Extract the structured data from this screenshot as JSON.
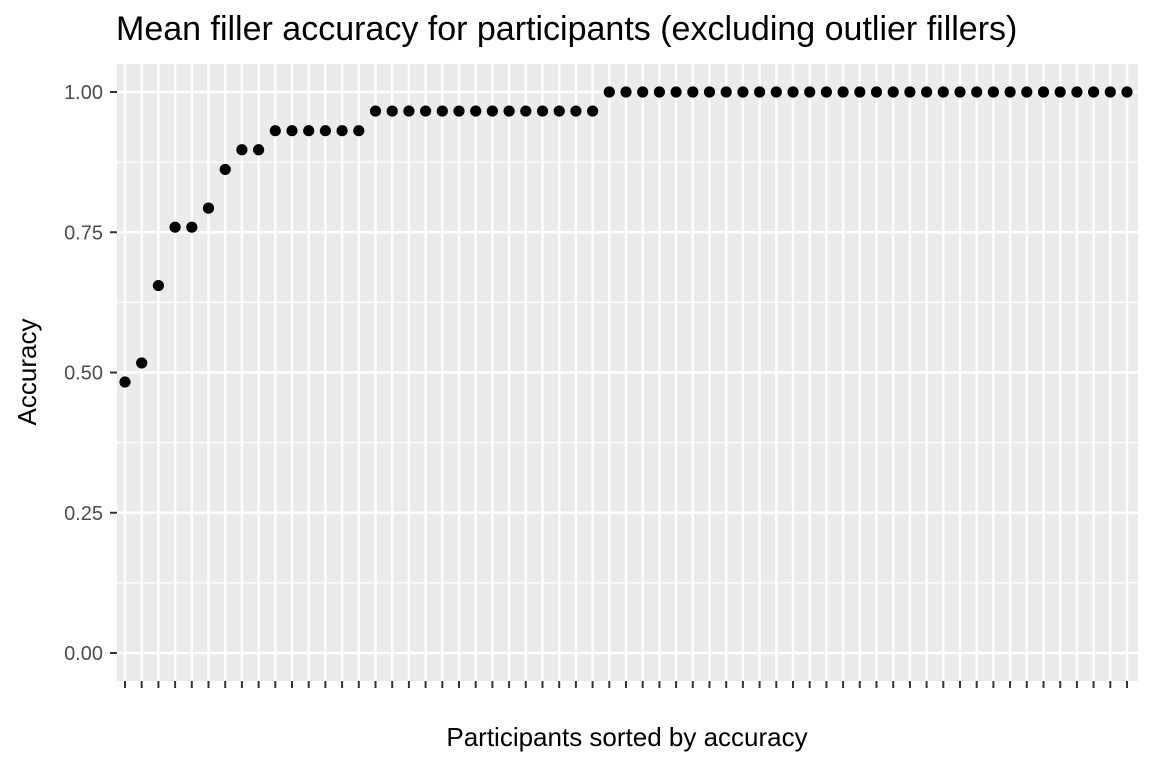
{
  "chart_data": {
    "type": "scatter",
    "title": "Mean filler accuracy for participants (excluding outlier fillers)",
    "xlabel": "Participants sorted by accuracy",
    "ylabel": "Accuracy",
    "ylim": [
      0,
      1
    ],
    "yticks": [
      "0.00",
      "0.25",
      "0.50",
      "0.75",
      "1.00"
    ],
    "ytick_values": [
      0,
      0.25,
      0.5,
      0.75,
      1.0
    ],
    "grid": true,
    "legend": "none",
    "point_color": "#000000",
    "panel_color": "#ebebeb",
    "values": [
      0.483,
      0.517,
      0.655,
      0.759,
      0.759,
      0.793,
      0.862,
      0.897,
      0.897,
      0.931,
      0.931,
      0.931,
      0.931,
      0.931,
      0.931,
      0.966,
      0.966,
      0.966,
      0.966,
      0.966,
      0.966,
      0.966,
      0.966,
      0.966,
      0.966,
      0.966,
      0.966,
      0.966,
      0.966,
      1.0,
      1.0,
      1.0,
      1.0,
      1.0,
      1.0,
      1.0,
      1.0,
      1.0,
      1.0,
      1.0,
      1.0,
      1.0,
      1.0,
      1.0,
      1.0,
      1.0,
      1.0,
      1.0,
      1.0,
      1.0,
      1.0,
      1.0,
      1.0,
      1.0,
      1.0,
      1.0,
      1.0,
      1.0,
      1.0,
      1.0,
      1.0
    ]
  }
}
